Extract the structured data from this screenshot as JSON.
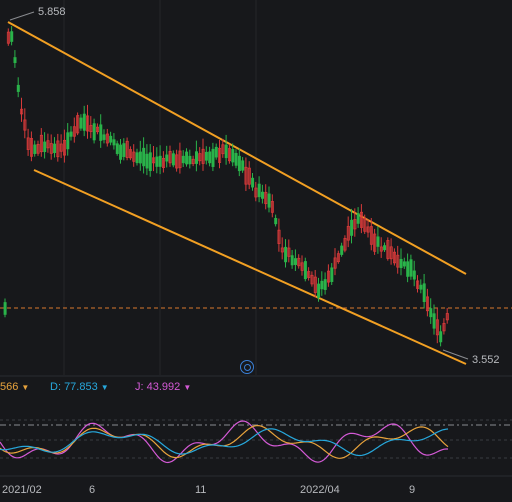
{
  "price_chart": {
    "high_label": "5.858",
    "low_label": "3.552"
  },
  "indicator": {
    "k_text": "566",
    "d_prefix": "D:",
    "d_value": "77.853",
    "j_prefix": "J:",
    "j_value": "43.992",
    "colors": {
      "k": "#e8a33c",
      "d": "#27a8dc",
      "j": "#d45ad6"
    }
  },
  "x_axis": {
    "ticks": [
      "2021/02",
      "6",
      "11",
      "2022/04",
      "9"
    ]
  },
  "colors": {
    "background": "#17181b",
    "up": "#d83a3a",
    "down": "#2ab34a",
    "channel": "#f2a023",
    "last_price_line": "#d9772e"
  },
  "icons": {
    "locate": "target-icon"
  }
}
